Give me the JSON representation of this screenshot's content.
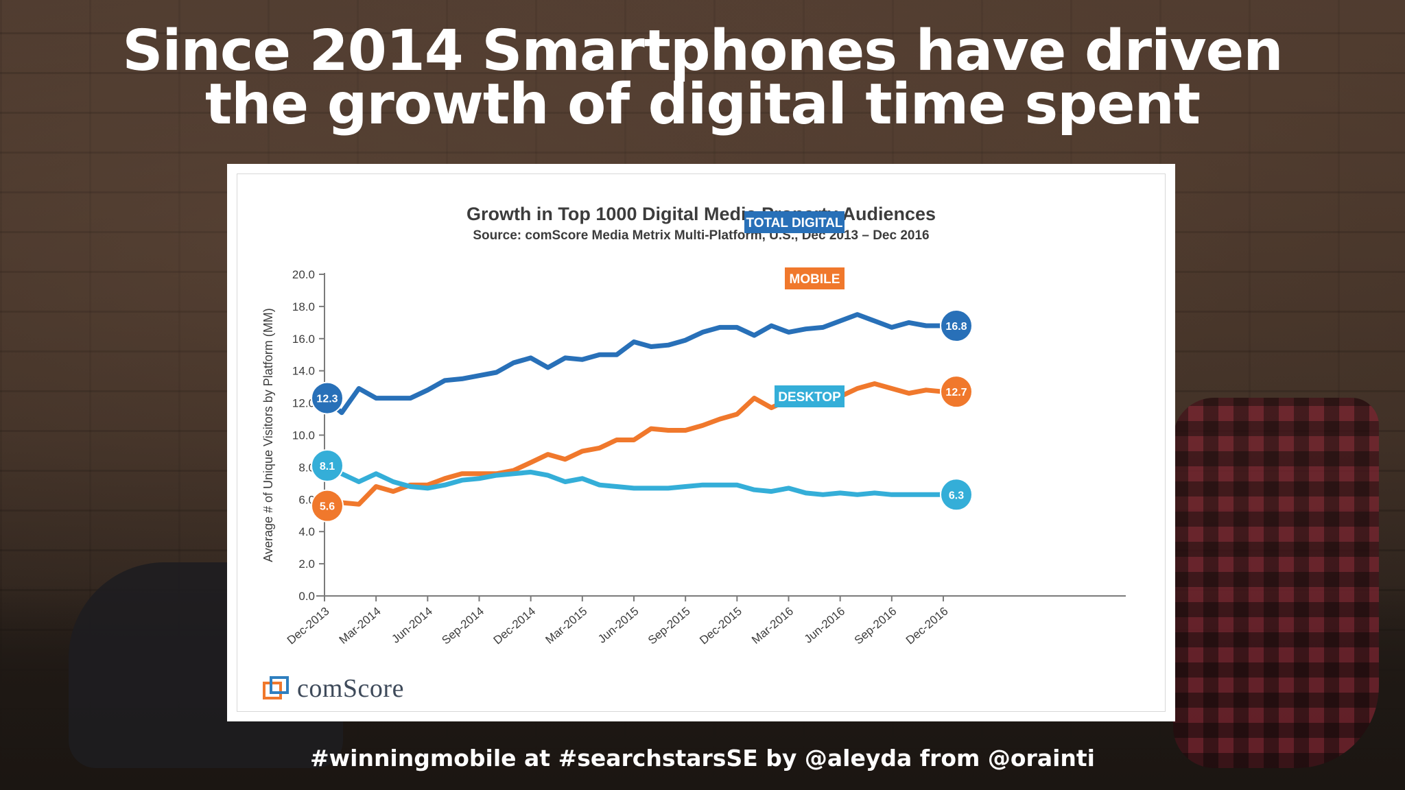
{
  "headline": {
    "line1": "Since 2014 Smartphones have driven",
    "line2": "the growth of digital time spent"
  },
  "footer": "#winningmobile at #searchstarsSE by @aleyda from @orainti",
  "logo": {
    "text": "comScore",
    "icon": "comscore-logo-icon"
  },
  "colors": {
    "total": "#2870b8",
    "mobile": "#f0782c",
    "desktop": "#34aed8",
    "text": "#3c3c3c"
  },
  "chart_data": {
    "type": "line",
    "title": "Growth in Top 1000 Digital Media Property Audiences",
    "subtitle": "Source: comScore Media Metrix Multi-Platform, U.S., Dec 2013 – Dec 2016",
    "ylabel": "Average # of Unique Visitors by Platform (MM)",
    "xlabel": "",
    "ylim": [
      0,
      20
    ],
    "yticks": [
      "0.0",
      "2.0",
      "4.0",
      "6.0",
      "8.0",
      "10.0",
      "12.0",
      "14.0",
      "16.0",
      "18.0",
      "20.0"
    ],
    "x": [
      "Dec-2013",
      "Jan-2014",
      "Feb-2014",
      "Mar-2014",
      "Apr-2014",
      "May-2014",
      "Jun-2014",
      "Jul-2014",
      "Aug-2014",
      "Sep-2014",
      "Oct-2014",
      "Nov-2014",
      "Dec-2014",
      "Jan-2015",
      "Feb-2015",
      "Mar-2015",
      "Apr-2015",
      "May-2015",
      "Jun-2015",
      "Jul-2015",
      "Aug-2015",
      "Sep-2015",
      "Oct-2015",
      "Nov-2015",
      "Dec-2015",
      "Jan-2016",
      "Feb-2016",
      "Mar-2016",
      "Apr-2016",
      "May-2016",
      "Jun-2016",
      "Jul-2016",
      "Aug-2016",
      "Sep-2016",
      "Oct-2016",
      "Nov-2016",
      "Dec-2016"
    ],
    "xtick_labels": [
      "Dec-2013",
      "Mar-2014",
      "Jun-2014",
      "Sep-2014",
      "Dec-2014",
      "Mar-2015",
      "Jun-2015",
      "Sep-2015",
      "Dec-2015",
      "Mar-2016",
      "Jun-2016",
      "Sep-2016",
      "Dec-2016"
    ],
    "grid": false,
    "legend": "inline labels at right",
    "series": [
      {
        "name": "TOTAL DIGITAL",
        "color": "#2870b8",
        "start_label": "12.3",
        "end_label": "16.8",
        "values": [
          12.3,
          11.4,
          12.9,
          12.3,
          12.3,
          12.3,
          12.8,
          13.4,
          13.5,
          13.7,
          13.9,
          14.5,
          14.8,
          14.2,
          14.8,
          14.7,
          15.0,
          15.0,
          15.8,
          15.5,
          15.6,
          15.9,
          16.4,
          16.7,
          16.7,
          16.2,
          16.8,
          16.4,
          16.6,
          16.7,
          17.1,
          17.5,
          17.1,
          16.7,
          17.0,
          16.8,
          16.8
        ]
      },
      {
        "name": "MOBILE",
        "color": "#f0782c",
        "start_label": "5.6",
        "end_label": "12.7",
        "values": [
          5.6,
          5.8,
          5.7,
          6.8,
          6.5,
          6.9,
          6.9,
          7.3,
          7.6,
          7.6,
          7.6,
          7.8,
          8.3,
          8.8,
          8.5,
          9.0,
          9.2,
          9.7,
          9.7,
          10.4,
          10.3,
          10.3,
          10.6,
          11.0,
          11.3,
          12.3,
          11.7,
          12.2,
          12.2,
          12.4,
          12.4,
          12.9,
          13.2,
          12.9,
          12.6,
          12.8,
          12.7
        ]
      },
      {
        "name": "DESKTOP",
        "color": "#34aed8",
        "start_label": "8.1",
        "end_label": "6.3",
        "values": [
          8.1,
          7.6,
          7.1,
          7.6,
          7.1,
          6.8,
          6.7,
          6.9,
          7.2,
          7.3,
          7.5,
          7.6,
          7.7,
          7.5,
          7.1,
          7.3,
          6.9,
          6.8,
          6.7,
          6.7,
          6.7,
          6.8,
          6.9,
          6.9,
          6.9,
          6.6,
          6.5,
          6.7,
          6.4,
          6.3,
          6.4,
          6.3,
          6.4,
          6.3,
          6.3,
          6.3,
          6.3
        ]
      }
    ]
  }
}
